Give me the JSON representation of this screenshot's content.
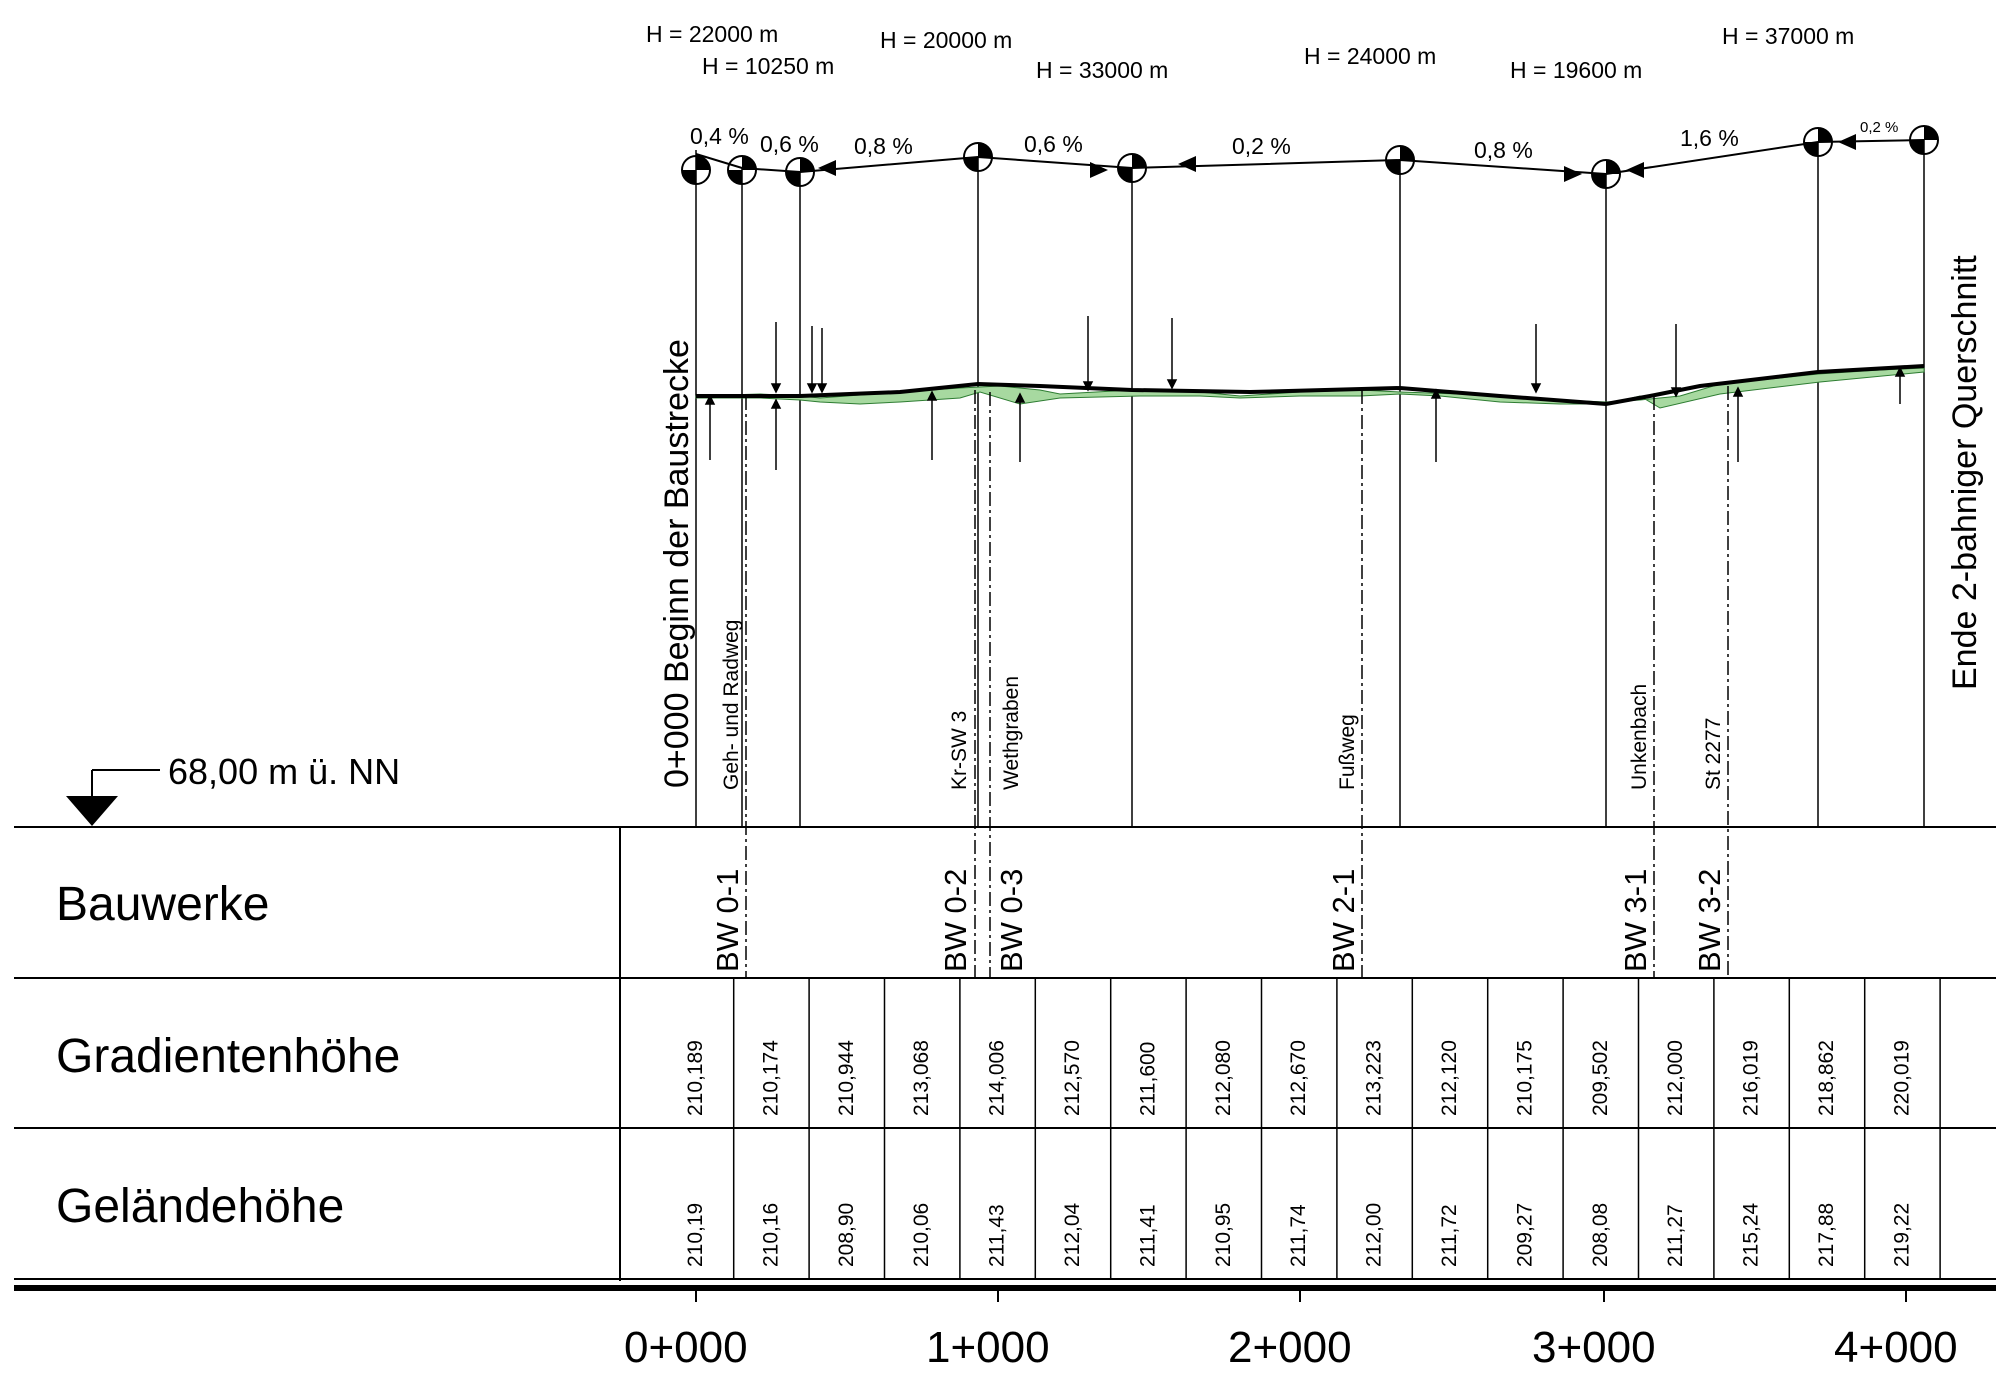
{
  "datum": {
    "label": "68,00 m ü. NN"
  },
  "rows": {
    "bauwerke": "Bauwerke",
    "gradient": "Gradientenhöhe",
    "terrain": "Geländehöhe"
  },
  "h_labels": [
    "H = 22000 m",
    "H = 10250 m",
    "H = 20000 m",
    "H = 33000 m",
    "H = 24000 m",
    "H = 19600 m",
    "H = 37000 m"
  ],
  "slopes": [
    "0,4 %",
    "0,6 %",
    "0,8 %",
    "0,6 %",
    "0,2 %",
    "0,8 %",
    "1,6 %",
    "0,2 %"
  ],
  "profile_labels": {
    "start": "0+000 Beginn der Baustrecke",
    "end": "Ende 2-bahniger Querschnitt",
    "crossings": [
      "Geh- und Radweg",
      "Kr-SW 3",
      "Wethgraben",
      "Fußweg",
      "Unkenbach",
      "St 2277"
    ]
  },
  "structures": [
    "BW 0-1",
    "BW 0-2",
    "BW 0-3",
    "BW 2-1",
    "BW 3-1",
    "BW 3-2"
  ],
  "gradient_heights": [
    "210,189",
    "210,174",
    "210,944",
    "213,068",
    "214,006",
    "212,570",
    "211,600",
    "212,080",
    "212,670",
    "213,223",
    "212,120",
    "210,175",
    "209,502",
    "212,000",
    "216,019",
    "218,862",
    "220,019"
  ],
  "terrain_heights": [
    "210,19",
    "210,16",
    "208,90",
    "210,06",
    "211,43",
    "212,04",
    "211,41",
    "210,95",
    "211,74",
    "212,00",
    "211,72",
    "209,27",
    "208,08",
    "211,27",
    "215,24",
    "217,88",
    "219,22"
  ],
  "stations": [
    "0+000",
    "1+000",
    "2+000",
    "3+000",
    "4+000"
  ]
}
